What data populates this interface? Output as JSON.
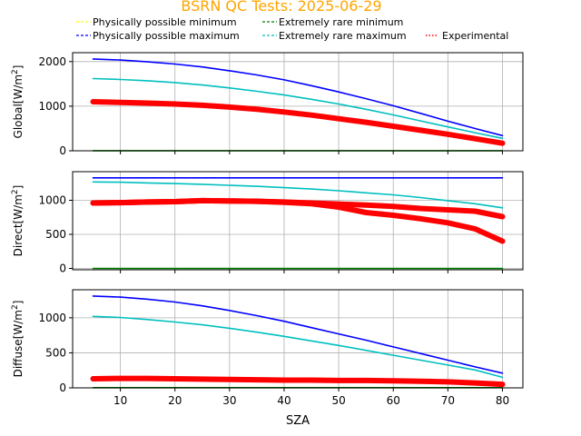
{
  "chart_data": {
    "type": "line",
    "title": "BSRN QC Tests: 2025-06-29",
    "title_color": "#ffa500",
    "xlabel": "SZA",
    "xlim": [
      1.25,
      83.75
    ],
    "xticks": [
      10,
      20,
      30,
      40,
      50,
      60,
      70,
      80
    ],
    "grid": true,
    "legend": {
      "placement": "top",
      "entries": [
        {
          "label": "Physically possible minimum",
          "color": "#ffff00",
          "style": "dashed"
        },
        {
          "label": "Extremely rare minimum",
          "color": "#008000",
          "style": "dashed"
        },
        {
          "label": "Physically possible maximum",
          "color": "#0000ff",
          "style": "dashed"
        },
        {
          "label": "Extremely rare maximum",
          "color": "#00bfbf",
          "style": "dashed"
        },
        {
          "label": "Experimental",
          "color": "#ff0000",
          "style": "dotted"
        }
      ]
    },
    "panels": [
      {
        "ylabel_main": "Global[W/m",
        "ylabel_sup": "2",
        "ylabel_end": "]",
        "ylim": [
          0,
          2200
        ],
        "yticks": [
          0,
          1000,
          2000
        ],
        "x": [
          5,
          10,
          15,
          20,
          25,
          30,
          35,
          40,
          45,
          50,
          55,
          60,
          65,
          70,
          75,
          80
        ],
        "series": [
          {
            "name": "Physically possible maximum",
            "color": "#0000ff",
            "values": [
              2060,
              2035,
              1995,
              1945,
              1880,
              1795,
              1700,
              1590,
              1460,
              1320,
              1170,
              1010,
              840,
              665,
              500,
              340
            ]
          },
          {
            "name": "Extremely rare maximum",
            "color": "#00bfbf",
            "values": [
              1620,
              1600,
              1570,
              1530,
              1475,
              1410,
              1335,
              1250,
              1155,
              1050,
              930,
              805,
              670,
              535,
              405,
              280
            ]
          },
          {
            "name": "Extremely rare minimum",
            "color": "#008000",
            "values": [
              3,
              3,
              3,
              3,
              3,
              3,
              3,
              3,
              3,
              3,
              3,
              3,
              3,
              3,
              3,
              3
            ]
          },
          {
            "name": "Experimental",
            "color": "#ff0000",
            "values": [
              1100,
              1085,
              1070,
              1050,
              1020,
              980,
              930,
              870,
              800,
              720,
              640,
              550,
              460,
              370,
              270,
              170
            ]
          }
        ]
      },
      {
        "ylabel_main": "Direct[W/m",
        "ylabel_sup": "2",
        "ylabel_end": "]",
        "ylim": [
          -20,
          1420
        ],
        "yticks": [
          0,
          500,
          1000
        ],
        "x": [
          5,
          10,
          15,
          20,
          25,
          30,
          35,
          40,
          45,
          50,
          55,
          60,
          65,
          70,
          75,
          80
        ],
        "series": [
          {
            "name": "Physically possible maximum",
            "color": "#0000ff",
            "values": [
              1330,
              1330,
              1330,
              1330,
              1330,
              1330,
              1330,
              1330,
              1330,
              1330,
              1330,
              1330,
              1330,
              1330,
              1330,
              1330
            ]
          },
          {
            "name": "Extremely rare maximum",
            "color": "#00bfbf",
            "values": [
              1270,
              1265,
              1255,
              1245,
              1235,
              1220,
              1205,
              1185,
              1165,
              1140,
              1110,
              1080,
              1040,
              995,
              950,
              890
            ]
          },
          {
            "name": "Extremely rare minimum",
            "color": "#008000",
            "values": [
              0,
              0,
              0,
              0,
              0,
              0,
              0,
              0,
              0,
              0,
              0,
              0,
              0,
              0,
              0,
              0
            ]
          },
          {
            "name": "Experimental",
            "color": "#ff0000",
            "values": [
              960,
              965,
              975,
              980,
              995,
              990,
              985,
              975,
              960,
              945,
              930,
              910,
              880,
              860,
              840,
              760
            ]
          },
          {
            "name": "Experimental",
            "color": "#ff0000",
            "values": [
              960,
              965,
              975,
              980,
              995,
              990,
              985,
              970,
              950,
              900,
              820,
              780,
              730,
              670,
              580,
              400
            ]
          }
        ]
      },
      {
        "ylabel_main": "Diffuse[W/m",
        "ylabel_sup": "2",
        "ylabel_end": "]",
        "ylim": [
          0,
          1400
        ],
        "yticks": [
          0,
          500,
          1000
        ],
        "x": [
          5,
          10,
          15,
          20,
          25,
          30,
          35,
          40,
          45,
          50,
          55,
          60,
          65,
          70,
          75,
          80
        ],
        "series": [
          {
            "name": "Physically possible maximum",
            "color": "#0000ff",
            "values": [
              1310,
              1295,
              1265,
              1225,
              1170,
              1105,
              1030,
              950,
              860,
              770,
              680,
              585,
              490,
              395,
              300,
              210
            ]
          },
          {
            "name": "Extremely rare maximum",
            "color": "#00bfbf",
            "values": [
              1020,
              1005,
              975,
              940,
              900,
              850,
              795,
              735,
              670,
              605,
              535,
              465,
              395,
              325,
              255,
              150
            ]
          },
          {
            "name": "Extremely rare minimum",
            "color": "#008000",
            "values": [
              2,
              2,
              2,
              2,
              2,
              2,
              2,
              2,
              2,
              2,
              2,
              2,
              2,
              2,
              2,
              2
            ]
          },
          {
            "name": "Experimental",
            "color": "#ff0000",
            "values": [
              130,
              135,
              135,
              130,
              125,
              120,
              115,
              110,
              110,
              105,
              105,
              100,
              95,
              85,
              70,
              50
            ]
          }
        ]
      }
    ]
  }
}
